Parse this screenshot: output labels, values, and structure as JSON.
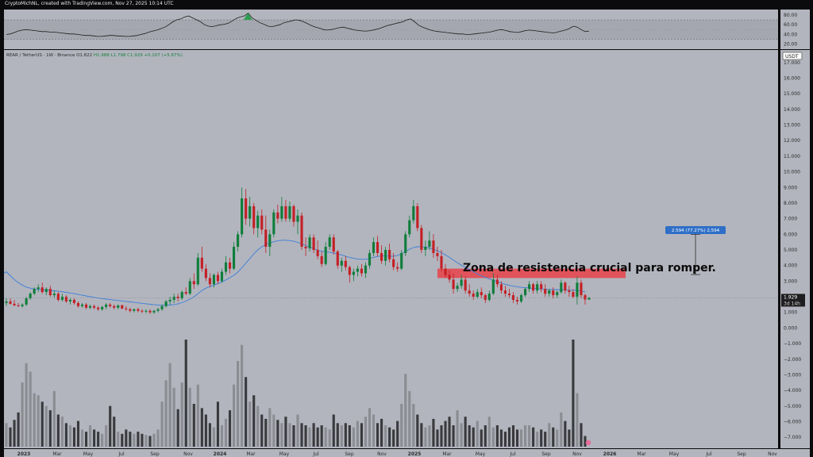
{
  "header": {
    "author": "CryptoMichNL",
    "created_text": "CryptoMichNL, created with TradingView.com, Nov 27, 2025 10:14 UTC"
  },
  "symbol": {
    "pair": "REAR / TetherUS · 1W · Binance",
    "open": "O1.822",
    "high": "H1.988",
    "low": "L1.798",
    "close": "C1.929",
    "change": "+0.107 (+5.87%)"
  },
  "currency_badge": "USDT",
  "last_price": {
    "value": "1.929",
    "countdown": "3d 14h"
  },
  "measure_label": "2.594 (77.27%) 2,594",
  "annotation": "Zona de resistencia crucial para romper.",
  "colors": {
    "background": "#b2b5be",
    "bull": "#0f7d3a",
    "bear": "#c41f25",
    "ma": "#3d7fd9",
    "zone": "#e0535a",
    "rsi_line": "#1f1f1f",
    "rsi_peak": "#2e9e50",
    "measure_badge": "#2f6fc7",
    "vol_dark": "#3a3a3d",
    "vol_light": "#8b8d92"
  },
  "chart_data": {
    "type": "candlestick",
    "timeframe": "1W",
    "y_axis_ticks": [
      "17.000",
      "16.000",
      "15.000",
      "14.000",
      "13.000",
      "12.000",
      "11.000",
      "10.000",
      "9.000",
      "8.000",
      "7.000",
      "6.000",
      "5.000",
      "4.000",
      "3.000",
      "2.000",
      "1.000",
      "0.000",
      "−1.000",
      "−2.000",
      "−3.000",
      "−4.000",
      "−5.000",
      "−6.000",
      "−7.000"
    ],
    "y_range": [
      -7.5,
      17.6
    ],
    "x_axis_ticks": [
      "2023",
      "Mar",
      "May",
      "Jul",
      "Sep",
      "Nov",
      "2024",
      "Mar",
      "May",
      "Jul",
      "Sep",
      "Nov",
      "2025",
      "Mar",
      "May",
      "Jul",
      "Sep",
      "Nov",
      "2026",
      "Mar",
      "May",
      "Jul",
      "Sep",
      "Nov"
    ],
    "rsi_ticks": [
      "80.00",
      "60.00",
      "40.00",
      "20.00"
    ],
    "rsi_range": [
      13,
      88
    ],
    "rsi_values": [
      40,
      41,
      44,
      47,
      49,
      50,
      49,
      48,
      47,
      46,
      46,
      45,
      45,
      44,
      43,
      42,
      41,
      41,
      40,
      39,
      38,
      38,
      37,
      36,
      36,
      37,
      38,
      38,
      37,
      37,
      36,
      36,
      37,
      38,
      40,
      42,
      45,
      47,
      49,
      52,
      55,
      60,
      66,
      70,
      72,
      76,
      78,
      74,
      70,
      66,
      60,
      57,
      56,
      58,
      60,
      61,
      63,
      68,
      73,
      76,
      78,
      84,
      74,
      69,
      64,
      61,
      57,
      56,
      58,
      60,
      64,
      66,
      68,
      70,
      69,
      66,
      62,
      58,
      55,
      53,
      50,
      49,
      50,
      52,
      54,
      55,
      53,
      51,
      49,
      48,
      47,
      47,
      48,
      50,
      52,
      55,
      58,
      60,
      62,
      64,
      66,
      70,
      72,
      66,
      59,
      55,
      52,
      49,
      47,
      46,
      45,
      44,
      43,
      42,
      41,
      41,
      40,
      40,
      41,
      42,
      43,
      44,
      45,
      47,
      49,
      50,
      48,
      46,
      45,
      44,
      46,
      48,
      49,
      48,
      47,
      46,
      45,
      44,
      43,
      45,
      47,
      49,
      52,
      57,
      55,
      50,
      46,
      47
    ],
    "ohlc": [
      [
        1.6,
        1.9,
        1.4,
        1.7
      ],
      [
        1.7,
        1.9,
        1.5,
        1.55
      ],
      [
        1.55,
        1.8,
        1.4,
        1.45
      ],
      [
        1.45,
        1.6,
        1.35,
        1.4
      ],
      [
        1.4,
        1.6,
        1.3,
        1.5
      ],
      [
        1.5,
        2.0,
        1.4,
        1.9
      ],
      [
        1.9,
        2.3,
        1.8,
        2.2
      ],
      [
        2.2,
        2.6,
        2.1,
        2.5
      ],
      [
        2.5,
        2.8,
        2.3,
        2.6
      ],
      [
        2.6,
        2.9,
        2.2,
        2.3
      ],
      [
        2.3,
        2.6,
        2.1,
        2.5
      ],
      [
        2.5,
        2.7,
        2.0,
        2.1
      ],
      [
        2.1,
        2.4,
        1.9,
        2.2
      ],
      [
        2.2,
        2.3,
        1.7,
        1.8
      ],
      [
        1.8,
        2.2,
        1.7,
        2.0
      ],
      [
        2.0,
        2.1,
        1.6,
        1.7
      ],
      [
        1.7,
        1.9,
        1.5,
        1.8
      ],
      [
        1.8,
        1.9,
        1.5,
        1.6
      ],
      [
        1.6,
        1.7,
        1.3,
        1.4
      ],
      [
        1.4,
        1.6,
        1.3,
        1.5
      ],
      [
        1.5,
        1.6,
        1.2,
        1.3
      ],
      [
        1.3,
        1.5,
        1.2,
        1.4
      ],
      [
        1.4,
        1.5,
        1.2,
        1.3
      ],
      [
        1.3,
        1.4,
        1.1,
        1.2
      ],
      [
        1.2,
        1.4,
        1.1,
        1.35
      ],
      [
        1.35,
        1.6,
        1.2,
        1.5
      ],
      [
        1.5,
        1.6,
        1.3,
        1.4
      ],
      [
        1.4,
        1.5,
        1.2,
        1.3
      ],
      [
        1.3,
        1.5,
        1.2,
        1.45
      ],
      [
        1.45,
        1.5,
        1.2,
        1.25
      ],
      [
        1.25,
        1.4,
        1.1,
        1.2
      ],
      [
        1.2,
        1.3,
        1.0,
        1.1
      ],
      [
        1.1,
        1.25,
        1.0,
        1.2
      ],
      [
        1.2,
        1.3,
        1.0,
        1.1
      ],
      [
        1.1,
        1.2,
        0.95,
        1.05
      ],
      [
        1.05,
        1.2,
        0.95,
        1.1
      ],
      [
        1.1,
        1.2,
        0.9,
        1.0
      ],
      [
        1.0,
        1.15,
        0.9,
        1.1
      ],
      [
        1.1,
        1.3,
        1.0,
        1.2
      ],
      [
        1.2,
        1.5,
        1.1,
        1.4
      ],
      [
        1.4,
        1.8,
        1.3,
        1.7
      ],
      [
        1.7,
        2.0,
        1.5,
        1.8
      ],
      [
        1.8,
        2.2,
        1.6,
        2.0
      ],
      [
        2.0,
        2.2,
        1.7,
        1.9
      ],
      [
        1.9,
        2.4,
        1.8,
        2.3
      ],
      [
        2.3,
        2.6,
        2.1,
        2.2
      ],
      [
        2.2,
        3.2,
        2.1,
        3.0
      ],
      [
        3.0,
        3.5,
        2.5,
        2.8
      ],
      [
        2.8,
        4.8,
        2.7,
        4.5
      ],
      [
        4.5,
        5.2,
        3.6,
        3.8
      ],
      [
        3.8,
        4.1,
        3.0,
        3.2
      ],
      [
        3.2,
        3.5,
        2.6,
        2.8
      ],
      [
        2.8,
        3.5,
        2.6,
        3.4
      ],
      [
        3.4,
        3.6,
        2.8,
        3.0
      ],
      [
        3.0,
        3.8,
        2.9,
        3.6
      ],
      [
        3.6,
        4.6,
        3.4,
        4.2
      ],
      [
        4.2,
        4.5,
        3.5,
        3.8
      ],
      [
        3.8,
        5.5,
        3.7,
        5.2
      ],
      [
        5.2,
        6.2,
        4.9,
        6.0
      ],
      [
        6.0,
        9.0,
        5.8,
        8.3
      ],
      [
        8.3,
        8.9,
        6.6,
        7.0
      ],
      [
        7.0,
        8.4,
        6.5,
        7.8
      ],
      [
        7.8,
        8.0,
        6.0,
        6.4
      ],
      [
        6.4,
        7.5,
        5.8,
        7.2
      ],
      [
        7.2,
        7.6,
        6.0,
        6.3
      ],
      [
        6.3,
        7.2,
        4.8,
        5.2
      ],
      [
        5.2,
        6.3,
        4.6,
        6.0
      ],
      [
        6.0,
        7.6,
        5.8,
        7.4
      ],
      [
        7.4,
        7.9,
        6.7,
        7.0
      ],
      [
        7.0,
        8.4,
        6.8,
        7.8
      ],
      [
        7.8,
        8.2,
        6.8,
        7.0
      ],
      [
        7.0,
        8.1,
        6.8,
        7.8
      ],
      [
        7.8,
        7.9,
        6.5,
        6.8
      ],
      [
        6.8,
        7.6,
        6.0,
        7.2
      ],
      [
        7.2,
        7.4,
        5.0,
        5.2
      ],
      [
        5.2,
        5.8,
        4.6,
        5.1
      ],
      [
        5.1,
        6.0,
        4.9,
        5.8
      ],
      [
        5.8,
        6.0,
        4.8,
        5.0
      ],
      [
        5.0,
        5.6,
        4.4,
        4.6
      ],
      [
        4.6,
        4.9,
        3.9,
        4.1
      ],
      [
        4.1,
        5.5,
        4.0,
        5.2
      ],
      [
        5.2,
        6.0,
        5.0,
        5.8
      ],
      [
        5.8,
        6.0,
        4.7,
        4.9
      ],
      [
        4.9,
        5.0,
        3.8,
        4.0
      ],
      [
        4.0,
        4.5,
        3.6,
        4.3
      ],
      [
        4.3,
        4.6,
        3.7,
        3.9
      ],
      [
        3.9,
        4.0,
        2.9,
        3.4
      ],
      [
        3.4,
        3.8,
        3.0,
        3.6
      ],
      [
        3.6,
        4.0,
        3.3,
        3.8
      ],
      [
        3.8,
        4.1,
        3.3,
        3.5
      ],
      [
        3.5,
        4.2,
        3.2,
        4.0
      ],
      [
        4.0,
        5.0,
        3.8,
        4.8
      ],
      [
        4.8,
        5.8,
        4.6,
        5.5
      ],
      [
        5.5,
        5.9,
        4.6,
        4.8
      ],
      [
        4.8,
        5.3,
        4.1,
        4.3
      ],
      [
        4.3,
        5.2,
        4.0,
        5.0
      ],
      [
        5.0,
        5.4,
        4.2,
        4.4
      ],
      [
        4.4,
        4.8,
        3.7,
        3.9
      ],
      [
        3.9,
        4.2,
        3.6,
        3.8
      ],
      [
        3.8,
        5.0,
        3.7,
        4.8
      ],
      [
        4.8,
        6.2,
        4.6,
        6.0
      ],
      [
        6.0,
        7.2,
        5.8,
        6.9
      ],
      [
        6.9,
        8.2,
        6.7,
        7.8
      ],
      [
        7.8,
        8.0,
        6.2,
        6.4
      ],
      [
        6.4,
        6.6,
        4.8,
        5.0
      ],
      [
        5.0,
        5.6,
        4.6,
        5.2
      ],
      [
        5.2,
        6.2,
        5.0,
        5.6
      ],
      [
        5.6,
        6.0,
        4.5,
        4.8
      ],
      [
        4.8,
        5.2,
        4.3,
        4.6
      ],
      [
        4.6,
        5.0,
        3.6,
        3.8
      ],
      [
        3.8,
        4.1,
        3.2,
        3.4
      ],
      [
        3.4,
        3.7,
        2.9,
        3.1
      ],
      [
        3.1,
        3.5,
        2.2,
        2.5
      ],
      [
        2.5,
        2.9,
        2.3,
        2.7
      ],
      [
        2.7,
        3.4,
        2.5,
        3.1
      ],
      [
        3.1,
        3.3,
        2.2,
        2.4
      ],
      [
        2.4,
        2.8,
        2.0,
        2.2
      ],
      [
        2.2,
        2.4,
        1.8,
        2.0
      ],
      [
        2.0,
        2.5,
        1.9,
        2.3
      ],
      [
        2.3,
        2.6,
        1.9,
        2.1
      ],
      [
        2.1,
        2.2,
        1.6,
        1.8
      ],
      [
        1.8,
        2.4,
        1.7,
        2.2
      ],
      [
        2.2,
        3.5,
        2.1,
        3.1
      ],
      [
        3.1,
        3.4,
        2.6,
        2.8
      ],
      [
        2.8,
        3.0,
        2.2,
        2.4
      ],
      [
        2.4,
        2.7,
        2.0,
        2.2
      ],
      [
        2.2,
        2.5,
        1.9,
        2.1
      ],
      [
        2.1,
        2.3,
        1.6,
        1.8
      ],
      [
        1.8,
        2.0,
        1.5,
        1.7
      ],
      [
        1.7,
        2.2,
        1.6,
        2.1
      ],
      [
        2.1,
        2.6,
        2.0,
        2.5
      ],
      [
        2.5,
        3.0,
        2.3,
        2.8
      ],
      [
        2.8,
        2.9,
        2.2,
        2.4
      ],
      [
        2.4,
        3.0,
        2.2,
        2.8
      ],
      [
        2.8,
        3.0,
        2.3,
        2.5
      ],
      [
        2.5,
        2.8,
        2.0,
        2.2
      ],
      [
        2.2,
        2.5,
        2.0,
        2.4
      ],
      [
        2.4,
        2.6,
        1.9,
        2.1
      ],
      [
        2.1,
        2.4,
        1.9,
        2.3
      ],
      [
        2.3,
        3.1,
        2.2,
        2.9
      ],
      [
        2.9,
        3.0,
        2.2,
        2.4
      ],
      [
        2.4,
        2.7,
        2.0,
        2.3
      ],
      [
        2.3,
        2.5,
        1.9,
        2.0
      ],
      [
        2.0,
        3.3,
        1.5,
        2.9
      ],
      [
        2.9,
        3.1,
        1.9,
        2.1
      ],
      [
        2.1,
        2.2,
        1.5,
        1.82
      ],
      [
        1.822,
        1.988,
        1.798,
        1.929
      ]
    ],
    "ma_values": [
      3.6,
      3.35,
      3.1,
      2.9,
      2.75,
      2.62,
      2.55,
      2.5,
      2.47,
      2.45,
      2.43,
      2.41,
      2.38,
      2.35,
      2.32,
      2.28,
      2.24,
      2.2,
      2.15,
      2.1,
      2.05,
      2.0,
      1.96,
      1.92,
      1.88,
      1.85,
      1.82,
      1.79,
      1.76,
      1.73,
      1.7,
      1.67,
      1.64,
      1.61,
      1.58,
      1.55,
      1.52,
      1.49,
      1.47,
      1.46,
      1.46,
      1.47,
      1.5,
      1.55,
      1.62,
      1.72,
      1.85,
      2.0,
      2.2,
      2.4,
      2.55,
      2.65,
      2.75,
      2.85,
      2.95,
      3.08,
      3.22,
      3.38,
      3.58,
      3.85,
      4.15,
      4.45,
      4.75,
      5.0,
      5.2,
      5.35,
      5.45,
      5.52,
      5.58,
      5.62,
      5.62,
      5.6,
      5.55,
      5.48,
      5.38,
      5.28,
      5.18,
      5.08,
      4.98,
      4.92,
      4.88,
      4.85,
      4.8,
      4.74,
      4.68,
      4.6,
      4.52,
      4.46,
      4.42,
      4.4,
      4.4,
      4.45,
      4.52,
      4.58,
      4.62,
      4.62,
      4.6,
      4.6,
      4.65,
      4.75,
      4.9,
      5.05,
      5.15,
      5.2,
      5.2,
      5.18,
      5.12,
      5.05,
      4.95,
      4.82,
      4.68,
      4.52,
      4.35,
      4.18,
      4.02,
      3.88,
      3.74,
      3.6,
      3.46,
      3.34,
      3.24,
      3.15,
      3.05,
      2.96,
      2.88,
      2.8,
      2.73,
      2.68,
      2.64,
      2.6,
      2.58,
      2.56,
      2.54,
      2.52,
      2.5,
      2.48,
      2.47,
      2.46,
      2.46,
      2.45,
      2.44,
      2.42,
      2.42,
      2.4,
      2.36,
      2.32
    ],
    "volume": [
      0.22,
      0.18,
      0.25,
      0.32,
      0.6,
      0.78,
      0.7,
      0.5,
      0.48,
      0.42,
      0.38,
      0.34,
      0.52,
      0.3,
      0.28,
      0.22,
      0.2,
      0.18,
      0.24,
      0.16,
      0.14,
      0.2,
      0.16,
      0.14,
      0.12,
      0.2,
      0.38,
      0.28,
      0.14,
      0.12,
      0.16,
      0.14,
      0.12,
      0.14,
      0.12,
      0.11,
      0.1,
      0.12,
      0.16,
      0.42,
      0.62,
      0.78,
      0.55,
      0.35,
      0.6,
      1.0,
      0.55,
      0.4,
      0.58,
      0.36,
      0.3,
      0.22,
      0.18,
      0.42,
      0.2,
      0.26,
      0.34,
      0.58,
      0.8,
      0.95,
      0.65,
      0.42,
      0.48,
      0.38,
      0.3,
      0.26,
      0.36,
      0.3,
      0.25,
      0.22,
      0.28,
      0.22,
      0.2,
      0.3,
      0.22,
      0.2,
      0.18,
      0.22,
      0.18,
      0.2,
      0.18,
      0.16,
      0.3,
      0.22,
      0.2,
      0.22,
      0.2,
      0.18,
      0.24,
      0.22,
      0.28,
      0.36,
      0.3,
      0.22,
      0.26,
      0.2,
      0.18,
      0.16,
      0.24,
      0.4,
      0.68,
      0.52,
      0.4,
      0.3,
      0.22,
      0.18,
      0.2,
      0.26,
      0.16,
      0.2,
      0.24,
      0.28,
      0.2,
      0.34,
      0.22,
      0.28,
      0.2,
      0.18,
      0.24,
      0.16,
      0.2,
      0.28,
      0.18,
      0.2,
      0.16,
      0.14,
      0.18,
      0.2,
      0.16,
      0.16,
      0.2,
      0.2,
      0.18,
      0.14,
      0.16,
      0.14,
      0.22,
      0.18,
      0.16,
      0.32,
      0.24,
      0.16,
      1.0,
      0.5,
      0.22,
      0.1
    ]
  }
}
